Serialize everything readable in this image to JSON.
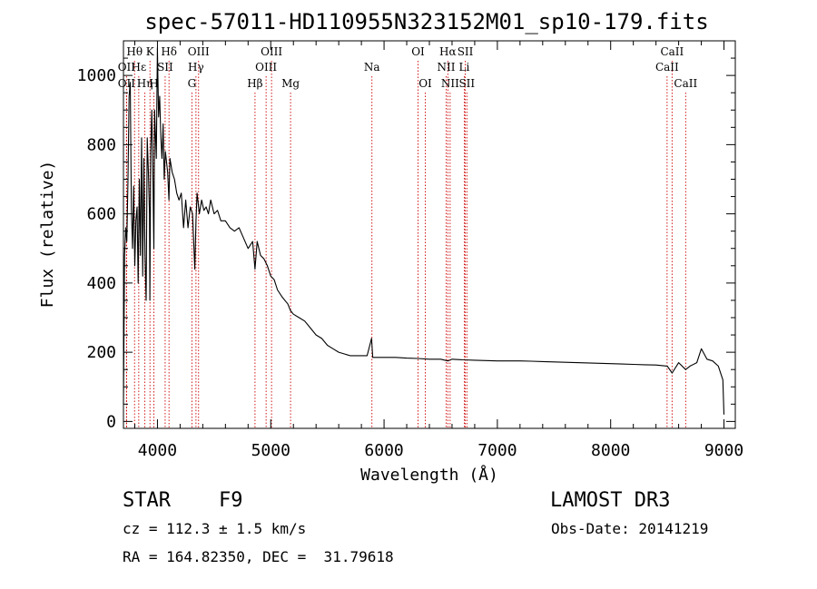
{
  "chart_data": {
    "type": "line",
    "title": "spec-57011-HD110955N323152M01_sp10-179.fits",
    "xlabel": "Wavelength (Å)",
    "ylabel": "Flux (relative)",
    "xlim": [
      3700,
      9100
    ],
    "ylim": [
      -20,
      1100
    ],
    "xticks": [
      4000,
      5000,
      6000,
      7000,
      8000,
      9000
    ],
    "yticks": [
      0,
      200,
      400,
      600,
      800,
      1000
    ],
    "line_color": "#000000",
    "marker_color": "#cc0000",
    "series": [
      {
        "name": "flux",
        "x": [
          3700,
          3710,
          3720,
          3730,
          3740,
          3750,
          3760,
          3770,
          3780,
          3790,
          3800,
          3810,
          3820,
          3830,
          3840,
          3850,
          3860,
          3870,
          3880,
          3890,
          3900,
          3910,
          3920,
          3930,
          3933,
          3940,
          3950,
          3960,
          3968,
          3975,
          3990,
          4000,
          4010,
          4020,
          4030,
          4040,
          4050,
          4060,
          4070,
          4090,
          4101,
          4110,
          4130,
          4150,
          4170,
          4190,
          4210,
          4230,
          4250,
          4270,
          4290,
          4310,
          4330,
          4340,
          4350,
          4370,
          4390,
          4410,
          4430,
          4450,
          4470,
          4500,
          4530,
          4560,
          4600,
          4640,
          4680,
          4720,
          4760,
          4800,
          4840,
          4861,
          4880,
          4910,
          4940,
          4970,
          5000,
          5030,
          5060,
          5100,
          5150,
          5175,
          5200,
          5250,
          5300,
          5350,
          5400,
          5450,
          5500,
          5550,
          5600,
          5650,
          5700,
          5750,
          5800,
          5850,
          5890,
          5900,
          5950,
          6000,
          6100,
          6200,
          6300,
          6400,
          6500,
          6563,
          6600,
          6700,
          6800,
          6900,
          7000,
          7100,
          7200,
          7300,
          7400,
          7500,
          7600,
          7700,
          7800,
          7900,
          8000,
          8100,
          8200,
          8300,
          8400,
          8500,
          8542,
          8600,
          8662,
          8700,
          8760,
          8800,
          8850,
          8900,
          8950,
          8990,
          9000
        ],
        "y": [
          50,
          480,
          560,
          520,
          700,
          940,
          980,
          620,
          500,
          680,
          450,
          580,
          620,
          400,
          700,
          480,
          820,
          420,
          760,
          480,
          350,
          820,
          720,
          600,
          350,
          780,
          900,
          700,
          500,
          900,
          760,
          1080,
          880,
          940,
          820,
          760,
          860,
          700,
          780,
          720,
          640,
          760,
          720,
          700,
          660,
          640,
          660,
          560,
          640,
          560,
          620,
          600,
          440,
          580,
          660,
          600,
          640,
          610,
          620,
          600,
          640,
          600,
          610,
          580,
          580,
          560,
          550,
          560,
          530,
          500,
          520,
          440,
          520,
          480,
          470,
          450,
          420,
          410,
          380,
          360,
          340,
          320,
          310,
          300,
          290,
          270,
          250,
          240,
          220,
          210,
          200,
          195,
          190,
          190,
          190,
          190,
          240,
          185,
          185,
          185,
          185,
          183,
          182,
          180,
          180,
          175,
          180,
          178,
          177,
          176,
          175,
          175,
          175,
          174,
          173,
          172,
          171,
          170,
          169,
          168,
          167,
          166,
          165,
          164,
          163,
          160,
          140,
          170,
          150,
          160,
          170,
          210,
          180,
          175,
          160,
          120,
          20
        ]
      }
    ],
    "lines": [
      {
        "name": "Hθ",
        "wl": 3798,
        "row": 1
      },
      {
        "name": "OII",
        "wl": 3727,
        "row": 2
      },
      {
        "name": "OII",
        "wl": 3727,
        "row": 3
      },
      {
        "name": "Hε",
        "wl": 3835,
        "row": 2
      },
      {
        "name": "Hη",
        "wl": 3889,
        "row": 3
      },
      {
        "name": "K",
        "wl": 3934,
        "row": 1
      },
      {
        "name": "H",
        "wl": 3968,
        "row": 3
      },
      {
        "name": "Hδ",
        "wl": 4102,
        "row": 1
      },
      {
        "name": "SII",
        "wl": 4068,
        "row": 2
      },
      {
        "name": "OIII",
        "wl": 4363,
        "row": 1
      },
      {
        "name": "Hγ",
        "wl": 4340,
        "row": 2
      },
      {
        "name": "G",
        "wl": 4304,
        "row": 3
      },
      {
        "name": "Hβ",
        "wl": 4861,
        "row": 3
      },
      {
        "name": "OIII",
        "wl": 5007,
        "row": 1
      },
      {
        "name": "OIII",
        "wl": 4959,
        "row": 2
      },
      {
        "name": "Mg",
        "wl": 5175,
        "row": 3
      },
      {
        "name": "Na",
        "wl": 5893,
        "row": 2
      },
      {
        "name": "OI",
        "wl": 6300,
        "row": 1
      },
      {
        "name": "OI",
        "wl": 6364,
        "row": 3
      },
      {
        "name": "Hα",
        "wl": 6563,
        "row": 1
      },
      {
        "name": "NII",
        "wl": 6548,
        "row": 2
      },
      {
        "name": "NII",
        "wl": 6583,
        "row": 3
      },
      {
        "name": "SII",
        "wl": 6717,
        "row": 1
      },
      {
        "name": "Li",
        "wl": 6708,
        "row": 2
      },
      {
        "name": "SII",
        "wl": 6731,
        "row": 3
      },
      {
        "name": "CaII",
        "wl": 8542,
        "row": 1
      },
      {
        "name": "CaII",
        "wl": 8498,
        "row": 2
      },
      {
        "name": "CaII",
        "wl": 8662,
        "row": 3
      }
    ]
  },
  "footer": {
    "class_label": "STAR",
    "subclass": "F9",
    "survey": "LAMOST DR3",
    "redshift": "cz = 112.3 ± 1.5 km/s",
    "obs_date": "Obs-Date: 20141219",
    "coords": "RA = 164.82350, DEC =  31.79618"
  }
}
